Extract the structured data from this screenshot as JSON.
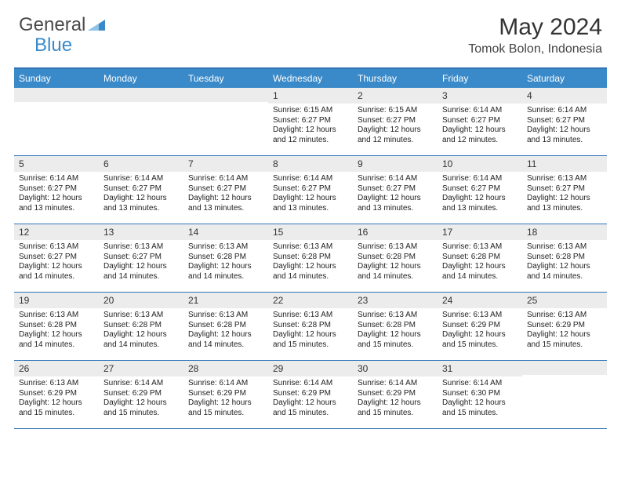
{
  "brand": {
    "part1": "General",
    "part2": "Blue"
  },
  "title": "May 2024",
  "location": "Tomok Bolon, Indonesia",
  "colors": {
    "header_bg": "#3a8ac9",
    "header_text": "#ffffff",
    "rule": "#2f74b5",
    "daynum_bg": "#ececec",
    "detail_fontsize": 10,
    "daynum_fontsize": 12,
    "title_fontsize": 30,
    "location_fontsize": 16
  },
  "day_names": [
    "Sunday",
    "Monday",
    "Tuesday",
    "Wednesday",
    "Thursday",
    "Friday",
    "Saturday"
  ],
  "weeks": [
    [
      null,
      null,
      null,
      {
        "n": "1",
        "sr": "6:15 AM",
        "ss": "6:27 PM",
        "dl": "12 hours and 12 minutes."
      },
      {
        "n": "2",
        "sr": "6:15 AM",
        "ss": "6:27 PM",
        "dl": "12 hours and 12 minutes."
      },
      {
        "n": "3",
        "sr": "6:14 AM",
        "ss": "6:27 PM",
        "dl": "12 hours and 12 minutes."
      },
      {
        "n": "4",
        "sr": "6:14 AM",
        "ss": "6:27 PM",
        "dl": "12 hours and 13 minutes."
      }
    ],
    [
      {
        "n": "5",
        "sr": "6:14 AM",
        "ss": "6:27 PM",
        "dl": "12 hours and 13 minutes."
      },
      {
        "n": "6",
        "sr": "6:14 AM",
        "ss": "6:27 PM",
        "dl": "12 hours and 13 minutes."
      },
      {
        "n": "7",
        "sr": "6:14 AM",
        "ss": "6:27 PM",
        "dl": "12 hours and 13 minutes."
      },
      {
        "n": "8",
        "sr": "6:14 AM",
        "ss": "6:27 PM",
        "dl": "12 hours and 13 minutes."
      },
      {
        "n": "9",
        "sr": "6:14 AM",
        "ss": "6:27 PM",
        "dl": "12 hours and 13 minutes."
      },
      {
        "n": "10",
        "sr": "6:14 AM",
        "ss": "6:27 PM",
        "dl": "12 hours and 13 minutes."
      },
      {
        "n": "11",
        "sr": "6:13 AM",
        "ss": "6:27 PM",
        "dl": "12 hours and 13 minutes."
      }
    ],
    [
      {
        "n": "12",
        "sr": "6:13 AM",
        "ss": "6:27 PM",
        "dl": "12 hours and 14 minutes."
      },
      {
        "n": "13",
        "sr": "6:13 AM",
        "ss": "6:27 PM",
        "dl": "12 hours and 14 minutes."
      },
      {
        "n": "14",
        "sr": "6:13 AM",
        "ss": "6:28 PM",
        "dl": "12 hours and 14 minutes."
      },
      {
        "n": "15",
        "sr": "6:13 AM",
        "ss": "6:28 PM",
        "dl": "12 hours and 14 minutes."
      },
      {
        "n": "16",
        "sr": "6:13 AM",
        "ss": "6:28 PM",
        "dl": "12 hours and 14 minutes."
      },
      {
        "n": "17",
        "sr": "6:13 AM",
        "ss": "6:28 PM",
        "dl": "12 hours and 14 minutes."
      },
      {
        "n": "18",
        "sr": "6:13 AM",
        "ss": "6:28 PM",
        "dl": "12 hours and 14 minutes."
      }
    ],
    [
      {
        "n": "19",
        "sr": "6:13 AM",
        "ss": "6:28 PM",
        "dl": "12 hours and 14 minutes."
      },
      {
        "n": "20",
        "sr": "6:13 AM",
        "ss": "6:28 PM",
        "dl": "12 hours and 14 minutes."
      },
      {
        "n": "21",
        "sr": "6:13 AM",
        "ss": "6:28 PM",
        "dl": "12 hours and 14 minutes."
      },
      {
        "n": "22",
        "sr": "6:13 AM",
        "ss": "6:28 PM",
        "dl": "12 hours and 15 minutes."
      },
      {
        "n": "23",
        "sr": "6:13 AM",
        "ss": "6:28 PM",
        "dl": "12 hours and 15 minutes."
      },
      {
        "n": "24",
        "sr": "6:13 AM",
        "ss": "6:29 PM",
        "dl": "12 hours and 15 minutes."
      },
      {
        "n": "25",
        "sr": "6:13 AM",
        "ss": "6:29 PM",
        "dl": "12 hours and 15 minutes."
      }
    ],
    [
      {
        "n": "26",
        "sr": "6:13 AM",
        "ss": "6:29 PM",
        "dl": "12 hours and 15 minutes."
      },
      {
        "n": "27",
        "sr": "6:14 AM",
        "ss": "6:29 PM",
        "dl": "12 hours and 15 minutes."
      },
      {
        "n": "28",
        "sr": "6:14 AM",
        "ss": "6:29 PM",
        "dl": "12 hours and 15 minutes."
      },
      {
        "n": "29",
        "sr": "6:14 AM",
        "ss": "6:29 PM",
        "dl": "12 hours and 15 minutes."
      },
      {
        "n": "30",
        "sr": "6:14 AM",
        "ss": "6:29 PM",
        "dl": "12 hours and 15 minutes."
      },
      {
        "n": "31",
        "sr": "6:14 AM",
        "ss": "6:30 PM",
        "dl": "12 hours and 15 minutes."
      },
      null
    ]
  ],
  "labels": {
    "sunrise": "Sunrise: ",
    "sunset": "Sunset: ",
    "daylight": "Daylight: "
  }
}
